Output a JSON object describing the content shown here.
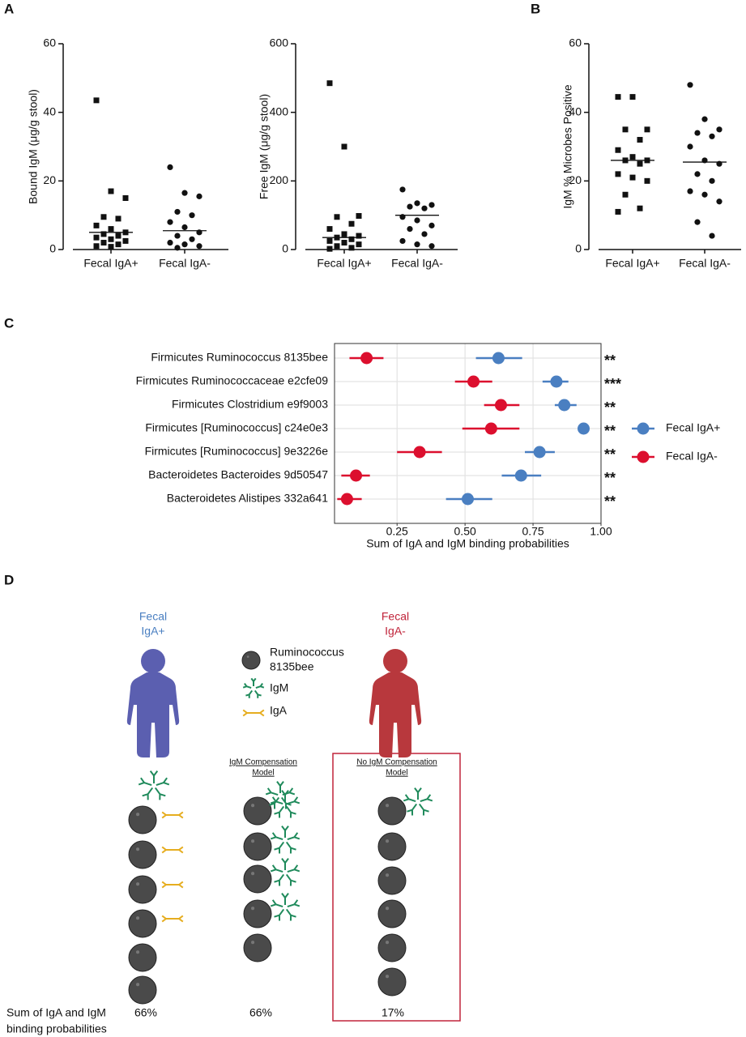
{
  "chart_data": [
    {
      "type": "strip",
      "panel": "A",
      "y_label": "Bound IgM (μg/g stool)",
      "categories": [
        "Fecal IgA+",
        "Fecal IgA-"
      ],
      "markers": [
        "square",
        "circle"
      ],
      "values": [
        [
          43.5,
          17,
          15,
          9.5,
          9,
          7,
          6,
          5,
          4.5,
          4,
          3.5,
          3,
          2.5,
          2,
          1.5,
          1,
          0.8
        ],
        [
          24,
          16.5,
          15.5,
          11,
          10,
          8,
          6.5,
          5,
          4,
          3,
          2,
          1.5,
          1,
          0.5
        ]
      ],
      "medians": [
        5,
        5.5
      ],
      "ylim": [
        0,
        60
      ],
      "yticks": [
        0,
        20,
        40,
        60
      ]
    },
    {
      "type": "strip",
      "y_label": "Free IgM (μg/g stool)",
      "categories": [
        "Fecal IgA+",
        "Fecal IgA-"
      ],
      "markers": [
        "square",
        "circle"
      ],
      "values": [
        [
          485,
          300,
          98,
          95,
          75,
          60,
          45,
          40,
          35,
          30,
          25,
          20,
          15,
          10,
          5,
          2
        ],
        [
          175,
          135,
          130,
          125,
          120,
          95,
          85,
          70,
          60,
          45,
          25,
          15,
          10
        ]
      ],
      "medians": [
        35,
        100
      ],
      "ylim": [
        0,
        600
      ],
      "yticks": [
        0,
        200,
        400,
        600
      ]
    },
    {
      "type": "strip",
      "panel": "B",
      "y_label": "IgM % Microbes Positive",
      "categories": [
        "Fecal IgA+",
        "Fecal IgA-"
      ],
      "markers": [
        "square",
        "circle"
      ],
      "values": [
        [
          44.5,
          44.5,
          35,
          35,
          32,
          29,
          27,
          26,
          26,
          25,
          22,
          21,
          20,
          16,
          12,
          11
        ],
        [
          48,
          38,
          35,
          34,
          33,
          30,
          26,
          25,
          22,
          20,
          17,
          16,
          14,
          8,
          4
        ]
      ],
      "medians": [
        26,
        25.5
      ],
      "ylim": [
        0,
        60
      ],
      "yticks": [
        0,
        20,
        40,
        60
      ]
    },
    {
      "type": "dot_ci",
      "panel": "C",
      "x_label": "Sum of IgA and IgM binding probabilities",
      "categories": [
        "Firmicutes Ruminococcus 8135bee",
        "Firmicutes Ruminococcaceae e2cfe09",
        "Firmicutes Clostridium e9f9003",
        "Firmicutes [Ruminococcus] c24e0e3",
        "Firmicutes [Ruminococcus] 9e3226e",
        "Bacteroidetes Bacteroides 9d50547",
        "Bacteroidetes Alistipes 332a641"
      ],
      "annotations": [
        "**",
        "***",
        "**",
        "**",
        "**",
        "**",
        "**"
      ],
      "series": [
        {
          "name": "Fecal IgA+",
          "color": "#4a7fc1",
          "values": [
            0.623,
            0.836,
            0.865,
            0.936,
            0.774,
            0.706,
            0.51
          ],
          "ci_low": [
            0.54,
            0.785,
            0.83,
            0.93,
            0.72,
            0.635,
            0.43
          ],
          "ci_high": [
            0.71,
            0.88,
            0.91,
            0.945,
            0.83,
            0.78,
            0.6
          ]
        },
        {
          "name": "Fecal IgA-",
          "color": "#dc0f2e",
          "values": [
            0.138,
            0.531,
            0.632,
            0.596,
            0.333,
            0.099,
            0.066
          ],
          "ci_low": [
            0.075,
            0.463,
            0.57,
            0.49,
            0.25,
            0.045,
            0.03
          ],
          "ci_high": [
            0.2,
            0.6,
            0.7,
            0.7,
            0.415,
            0.15,
            0.12
          ]
        }
      ],
      "xlim": [
        0.02,
        1.0
      ],
      "xticks": [
        0.25,
        {
          "value": 0.5,
          "label": "0.50"
        },
        0.75,
        {
          "value": 1.0,
          "label": "1.00"
        }
      ],
      "grid": true,
      "legend": "right"
    }
  ],
  "diagram": {
    "panel": "D",
    "donor_pos": [
      "Fecal",
      "IgA+"
    ],
    "donor_neg": [
      "Fecal",
      "IgA-"
    ],
    "legend": {
      "microbe": [
        "Ruminococcus",
        "8135bee"
      ],
      "igm": "IgM",
      "iga": "IgA"
    },
    "model_1": [
      "IgM Compensation",
      "Model"
    ],
    "model_2": [
      "No IgM Compensation",
      "Model"
    ],
    "footer": [
      "Sum of IgA and IgM",
      "binding probabilities"
    ],
    "percentages": [
      "66%",
      "66%",
      "17%"
    ]
  }
}
